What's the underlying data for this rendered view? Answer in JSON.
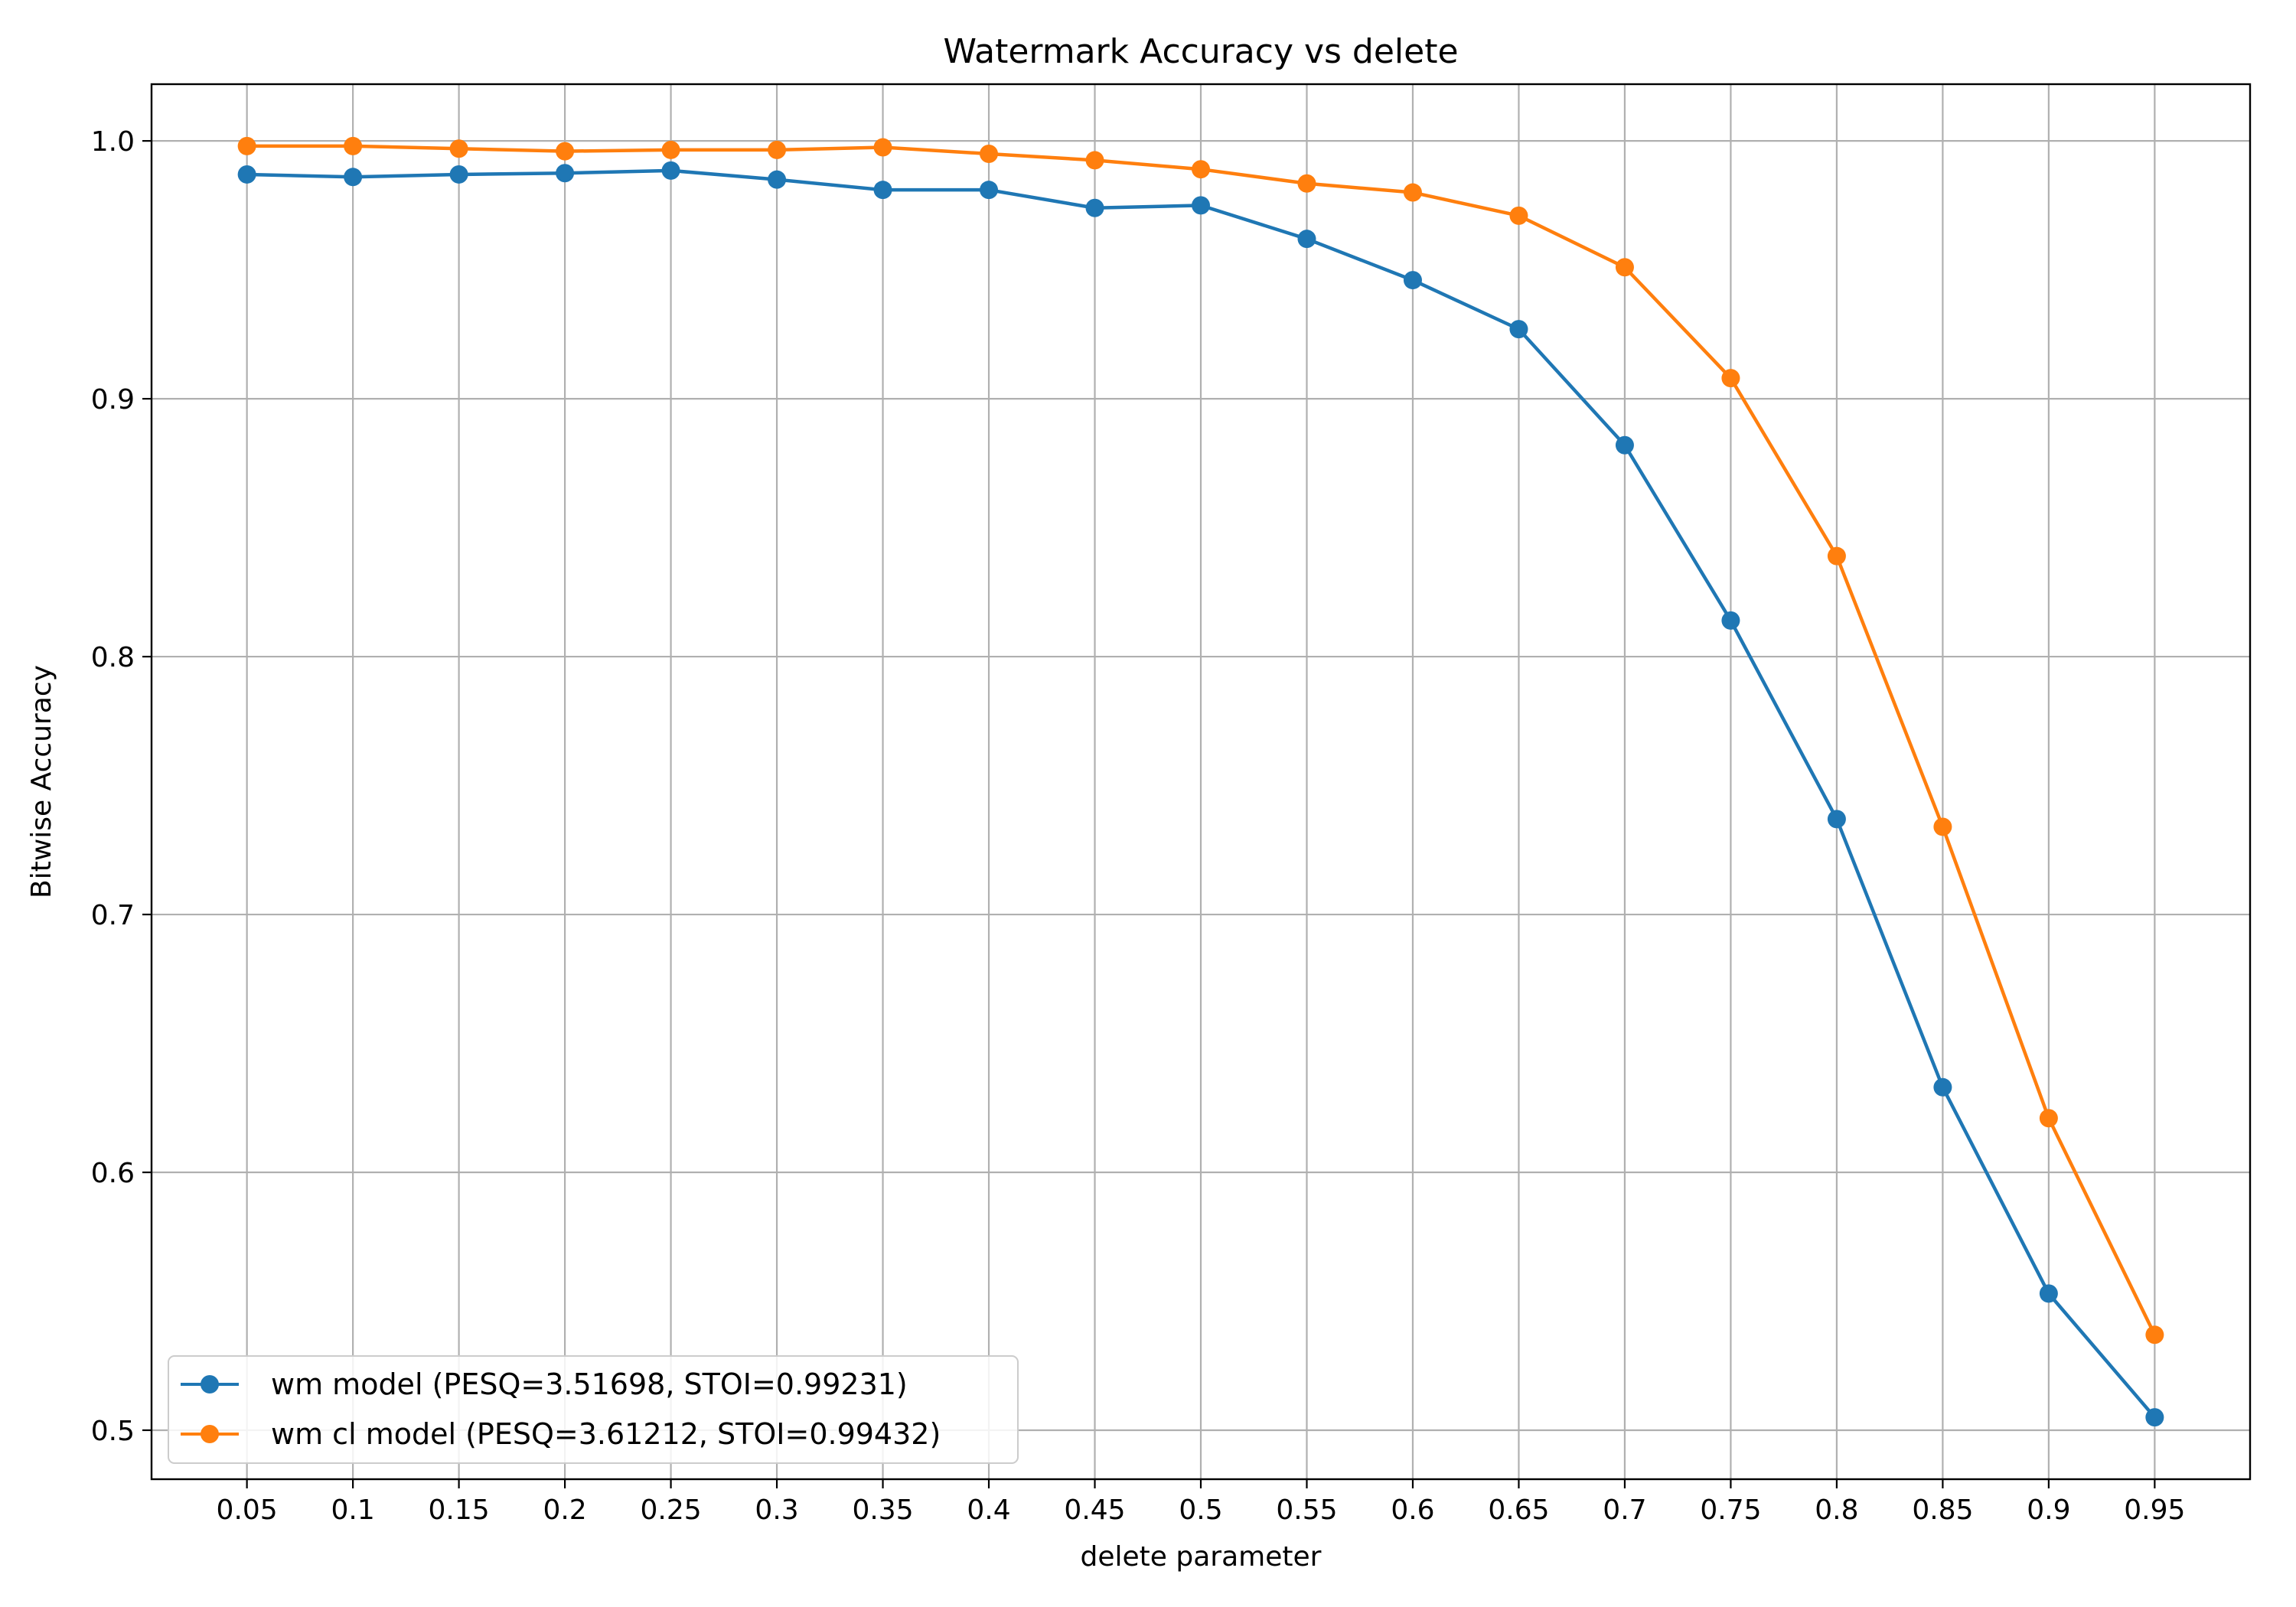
{
  "chart_data": {
    "type": "line",
    "title": "Watermark Accuracy vs delete",
    "xlabel": "delete parameter",
    "ylabel": "Bitwise Accuracy",
    "x": [
      0.05,
      0.1,
      0.15,
      0.2,
      0.25,
      0.3,
      0.35,
      0.4,
      0.45,
      0.5,
      0.55,
      0.6,
      0.65,
      0.7,
      0.75,
      0.8,
      0.85,
      0.9,
      0.95
    ],
    "x_tick_labels": [
      "0.05",
      "0.1",
      "0.15",
      "0.2",
      "0.25",
      "0.3",
      "0.35",
      "0.4",
      "0.45",
      "0.5",
      "0.55",
      "0.6",
      "0.65",
      "0.7",
      "0.75",
      "0.8",
      "0.85",
      "0.9",
      "0.95"
    ],
    "xlim": [
      0.005,
      0.995
    ],
    "y_ticks": [
      0.5,
      0.6,
      0.7,
      0.8,
      0.9,
      1.0
    ],
    "y_tick_labels": [
      "0.5",
      "0.6",
      "0.7",
      "0.8",
      "0.9",
      "1.0"
    ],
    "ylim": [
      0.481,
      1.022
    ],
    "grid": true,
    "legend_position": "lower-left",
    "series": [
      {
        "name": "wm model (PESQ=3.51698, STOI=0.99231)",
        "color": "#1f77b4",
        "marker": "circle",
        "values": [
          0.987,
          0.986,
          0.987,
          0.9875,
          0.9885,
          0.985,
          0.981,
          0.981,
          0.974,
          0.975,
          0.962,
          0.946,
          0.927,
          0.882,
          0.814,
          0.737,
          0.633,
          0.553,
          0.505
        ]
      },
      {
        "name": "wm cl model (PESQ=3.61212, STOI=0.99432)",
        "color": "#ff7f0e",
        "marker": "circle",
        "values": [
          0.998,
          0.998,
          0.997,
          0.996,
          0.9965,
          0.9965,
          0.9975,
          0.995,
          0.9925,
          0.989,
          0.9835,
          0.98,
          0.971,
          0.951,
          0.908,
          0.839,
          0.734,
          0.621,
          0.537
        ]
      }
    ]
  }
}
